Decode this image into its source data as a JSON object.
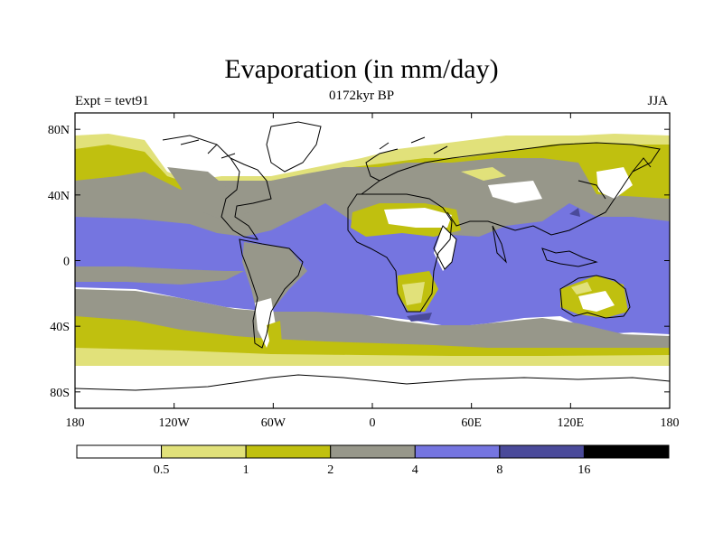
{
  "title": "Evaporation (in mm/day)",
  "subtitle": "0172kyr BP",
  "left_string": "Expt = tevt91",
  "right_string": "JJA",
  "map": {
    "projection": "cylindrical equidistant",
    "lon_range": [
      -180,
      180
    ],
    "lat_range": [
      -90,
      90
    ],
    "lon_ticks": [
      {
        "value": -180,
        "label": "180"
      },
      {
        "value": -120,
        "label": "120W"
      },
      {
        "value": -60,
        "label": "60W"
      },
      {
        "value": 0,
        "label": "0"
      },
      {
        "value": 60,
        "label": "60E"
      },
      {
        "value": 120,
        "label": "120E"
      },
      {
        "value": 180,
        "label": "180"
      }
    ],
    "lat_ticks": [
      {
        "value": 80,
        "label": "80N"
      },
      {
        "value": 40,
        "label": "40N"
      },
      {
        "value": 0,
        "label": "0"
      },
      {
        "value": -40,
        "label": "40S"
      },
      {
        "value": -80,
        "label": "80S"
      }
    ]
  },
  "colorbar": {
    "levels": [
      "0.5",
      "1",
      "2",
      "4",
      "8",
      "16"
    ],
    "colors": [
      "#ffffff",
      "#e1e17a",
      "#c0c00f",
      "#97978a",
      "#7575e0",
      "#4a4a9a",
      "#000000"
    ]
  },
  "chart_data": {
    "type": "heatmap",
    "title": "Evaporation (in mm/day)",
    "subtitle": "0172kyr BP",
    "experiment": "Expt = tevt91",
    "season": "JJA",
    "units": "mm/day",
    "contour_levels": [
      0.5,
      1,
      2,
      4,
      8,
      16
    ],
    "zonal_bands_description": [
      {
        "lat_range": [
          60,
          90
        ],
        "value_class": "<1 (white/pale) over polar land and ice"
      },
      {
        "lat_range": [
          40,
          60
        ],
        "value_class": "1-4 (yellow/gray) over oceans and midlatitude land"
      },
      {
        "lat_range": [
          -30,
          30
        ],
        "value_class": "4-8 (blue) over tropical oceans"
      },
      {
        "lat_range": [
          -30,
          40
        ],
        "value_class": "<0.5 (white) over Sahara, Arabia, central Asia deserts, Australia interior"
      },
      {
        "lat_range": [
          -60,
          -40
        ],
        "value_class": "1-2 (yellow) Southern Ocean"
      },
      {
        "lat_range": [
          -90,
          -65
        ],
        "value_class": "<0.5 (white) Antarctica"
      }
    ]
  }
}
